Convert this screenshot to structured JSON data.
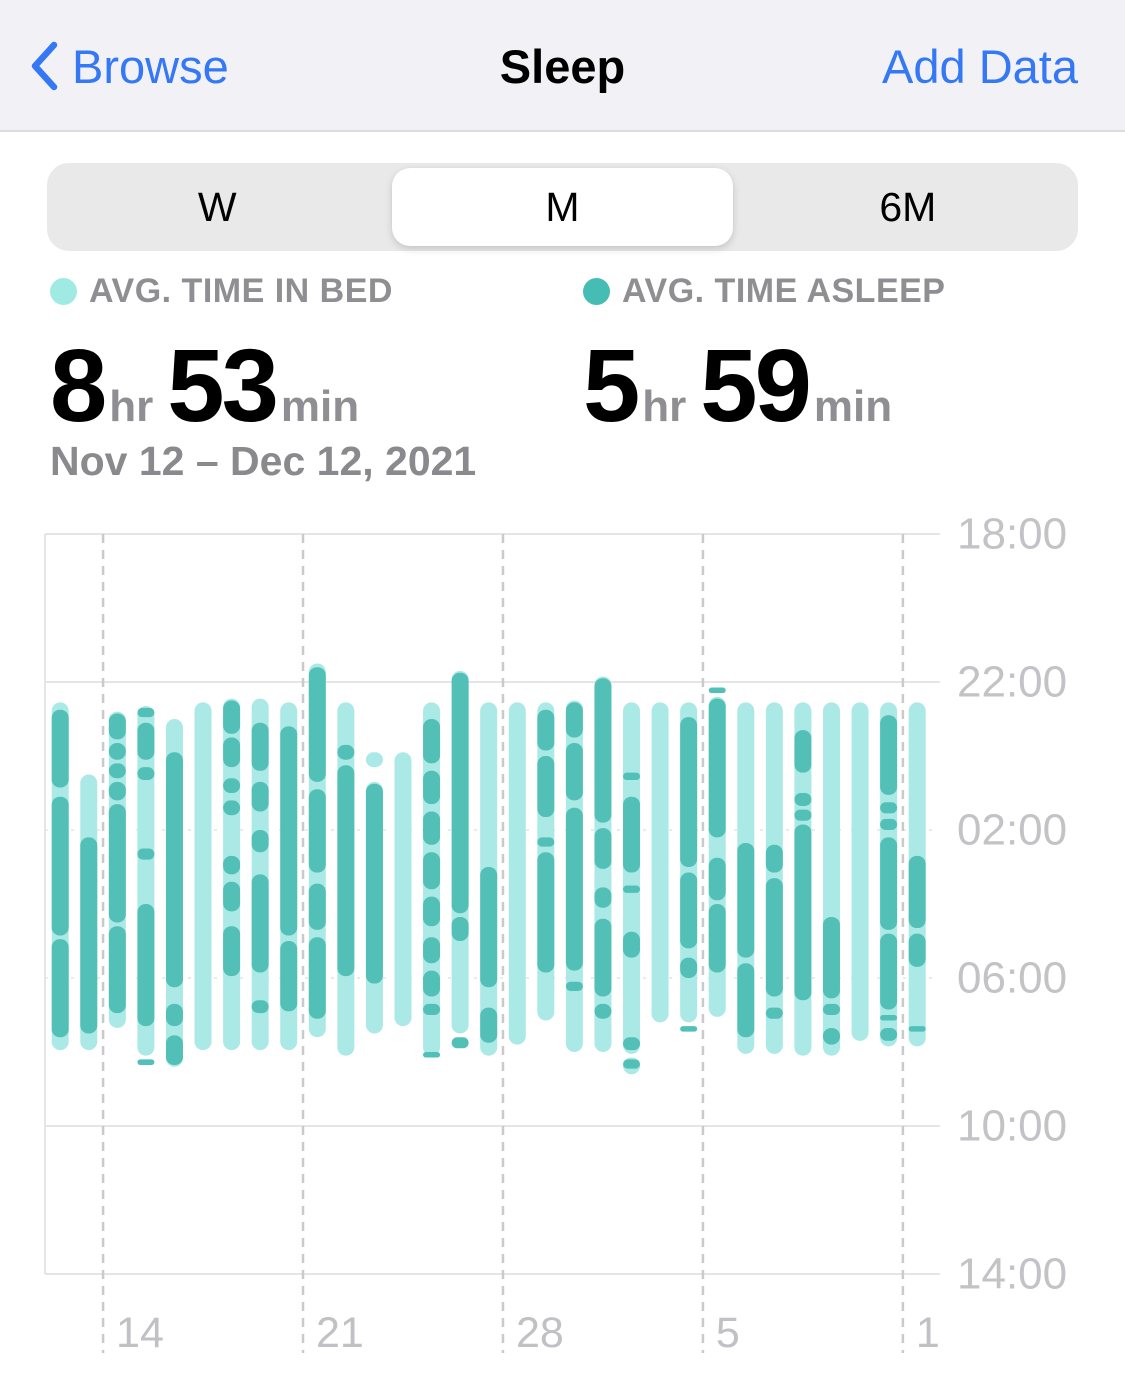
{
  "nav": {
    "back": "Browse",
    "title": "Sleep",
    "action": "Add Data",
    "accent_color": "#3478f6"
  },
  "segmented": {
    "options": [
      "W",
      "M",
      "6M"
    ],
    "selected_index": 1
  },
  "summary": {
    "legend_bed": {
      "label": "AVG. TIME IN BED",
      "color": "#9febe3"
    },
    "legend_asleep": {
      "label": "AVG. TIME ASLEEP",
      "color": "#45bdb4"
    },
    "bed": {
      "hours": "8",
      "hr_unit": "hr",
      "minutes": "53",
      "min_unit": "min"
    },
    "asleep": {
      "hours": "5",
      "hr_unit": "hr",
      "minutes": "59",
      "min_unit": "min"
    },
    "date_range": "Nov 12 – Dec 12, 2021"
  },
  "chart_data": {
    "type": "bar",
    "variant": "time-interval sleep chart (one vertical capsule per night)",
    "title": "Sleep, Nov 12 – Dec 12, 2021",
    "unit_note": "all interval values are decimal hours after 18:00 on the axis (18:00 -> 14:00 next day, 20 h span)",
    "colors": {
      "in_bed": "#aae9e5",
      "asleep": "#53c0b8"
    },
    "y_axis": {
      "tick_labels": [
        "18:00",
        "22:00",
        "02:00",
        "06:00",
        "10:00",
        "14:00"
      ],
      "span_hours": 20,
      "grid": true,
      "labels_position": "right"
    },
    "x_axis": {
      "tick_labels": [
        "14",
        "21",
        "28",
        "5",
        "1"
      ],
      "tick_day_indices": [
        1.5,
        8.5,
        15.5,
        22.5,
        29.5
      ],
      "dashed_gridlines": true
    },
    "days": [
      {
        "date": "Nov 12",
        "in_bed": [
          [
            4.55,
            13.95
          ]
        ],
        "asleep": [
          [
            4.75,
            6.85
          ],
          [
            7.1,
            10.85
          ],
          [
            10.95,
            13.6
          ]
        ]
      },
      {
        "date": "Nov 13",
        "in_bed": [
          [
            6.5,
            13.95
          ]
        ],
        "asleep": [
          [
            8.2,
            13.5
          ]
        ]
      },
      {
        "date": "Nov 14",
        "in_bed": [
          [
            4.8,
            13.35
          ]
        ],
        "asleep": [
          [
            4.85,
            5.55
          ],
          [
            5.65,
            6.1
          ],
          [
            6.2,
            6.6
          ],
          [
            6.7,
            7.2
          ],
          [
            7.3,
            10.5
          ],
          [
            10.6,
            12.95
          ]
        ]
      },
      {
        "date": "Nov 15",
        "in_bed": [
          [
            4.65,
            14.1
          ]
        ],
        "asleep": [
          [
            4.7,
            4.95
          ],
          [
            5.1,
            6.1
          ],
          [
            6.3,
            6.65
          ],
          [
            8.5,
            8.8
          ],
          [
            10.0,
            13.3
          ],
          [
            14.2,
            14.35
          ]
        ]
      },
      {
        "date": "Nov 16",
        "in_bed": [
          [
            5.0,
            14.4
          ]
        ],
        "asleep": [
          [
            5.9,
            12.25
          ],
          [
            12.7,
            13.3
          ],
          [
            13.55,
            14.35
          ]
        ]
      },
      {
        "date": "Nov 17",
        "in_bed": [
          [
            4.55,
            13.95
          ]
        ],
        "asleep": []
      },
      {
        "date": "Nov 18",
        "in_bed": [
          [
            4.45,
            13.95
          ]
        ],
        "asleep": [
          [
            4.5,
            5.4
          ],
          [
            5.5,
            6.3
          ],
          [
            6.6,
            7.0
          ],
          [
            7.2,
            7.6
          ],
          [
            8.7,
            9.2
          ],
          [
            9.4,
            10.2
          ],
          [
            10.6,
            11.95
          ]
        ]
      },
      {
        "date": "Nov 19",
        "in_bed": [
          [
            4.45,
            13.95
          ]
        ],
        "asleep": [
          [
            5.1,
            6.4
          ],
          [
            6.7,
            7.5
          ],
          [
            8.0,
            8.6
          ],
          [
            9.2,
            11.85
          ],
          [
            12.6,
            12.95
          ]
        ]
      },
      {
        "date": "Nov 20",
        "in_bed": [
          [
            4.55,
            13.95
          ]
        ],
        "asleep": [
          [
            5.2,
            10.85
          ],
          [
            11.0,
            12.9
          ]
        ]
      },
      {
        "date": "Nov 21",
        "in_bed": [
          [
            3.5,
            13.6
          ]
        ],
        "asleep": [
          [
            3.6,
            6.7
          ],
          [
            6.9,
            9.15
          ],
          [
            9.45,
            10.7
          ],
          [
            10.9,
            13.1
          ]
        ]
      },
      {
        "date": "Nov 22",
        "in_bed": [
          [
            4.55,
            14.1
          ]
        ],
        "asleep": [
          [
            5.7,
            6.1
          ],
          [
            6.25,
            11.95
          ]
        ]
      },
      {
        "date": "Nov 23",
        "in_bed": [
          [
            5.9,
            6.3
          ],
          [
            6.7,
            13.5
          ]
        ],
        "asleep": [
          [
            6.75,
            12.15
          ]
        ]
      },
      {
        "date": "Nov 24",
        "in_bed": [
          [
            5.9,
            13.3
          ]
        ],
        "asleep": []
      },
      {
        "date": "Nov 25",
        "in_bed": [
          [
            4.55,
            14.1
          ]
        ],
        "asleep": [
          [
            5.0,
            6.2
          ],
          [
            6.4,
            7.3
          ],
          [
            7.5,
            8.4
          ],
          [
            8.6,
            9.6
          ],
          [
            9.8,
            10.6
          ],
          [
            10.9,
            11.6
          ],
          [
            11.8,
            12.5
          ],
          [
            12.7,
            13.0
          ],
          [
            14.0,
            14.15
          ]
        ]
      },
      {
        "date": "Nov 26",
        "in_bed": [
          [
            3.7,
            13.5
          ]
        ],
        "asleep": [
          [
            3.75,
            10.25
          ],
          [
            10.35,
            11.0
          ],
          [
            13.6,
            13.9
          ]
        ]
      },
      {
        "date": "Nov 27",
        "in_bed": [
          [
            4.55,
            14.1
          ]
        ],
        "asleep": [
          [
            9.0,
            12.25
          ],
          [
            12.8,
            13.75
          ]
        ]
      },
      {
        "date": "Nov 28",
        "in_bed": [
          [
            4.55,
            13.8
          ]
        ],
        "asleep": []
      },
      {
        "date": "Nov 29",
        "in_bed": [
          [
            4.55,
            13.15
          ]
        ],
        "asleep": [
          [
            4.75,
            5.85
          ],
          [
            6.0,
            7.65
          ],
          [
            8.2,
            8.45
          ],
          [
            8.6,
            11.85
          ]
        ]
      },
      {
        "date": "Nov 30",
        "in_bed": [
          [
            4.5,
            14.0
          ]
        ],
        "asleep": [
          [
            4.55,
            5.5
          ],
          [
            5.65,
            7.2
          ],
          [
            7.4,
            11.8
          ],
          [
            12.1,
            12.35
          ]
        ]
      },
      {
        "date": "Dec 1",
        "in_bed": [
          [
            3.85,
            14.0
          ]
        ],
        "asleep": [
          [
            3.9,
            7.8
          ],
          [
            7.95,
            9.05
          ],
          [
            9.55,
            10.1
          ],
          [
            10.4,
            12.5
          ],
          [
            12.7,
            13.1
          ]
        ]
      },
      {
        "date": "Dec 2",
        "in_bed": [
          [
            4.55,
            14.05
          ],
          [
            14.15,
            14.6
          ]
        ],
        "asleep": [
          [
            6.45,
            6.65
          ],
          [
            7.1,
            9.15
          ],
          [
            9.5,
            9.7
          ],
          [
            10.75,
            11.45
          ],
          [
            13.6,
            13.95
          ],
          [
            14.2,
            14.45
          ]
        ]
      },
      {
        "date": "Dec 3",
        "in_bed": [
          [
            4.55,
            13.2
          ]
        ],
        "asleep": []
      },
      {
        "date": "Dec 4",
        "in_bed": [
          [
            4.55,
            13.2
          ]
        ],
        "asleep": [
          [
            4.95,
            9.0
          ],
          [
            9.15,
            11.2
          ],
          [
            11.45,
            12.0
          ],
          [
            13.3,
            13.45
          ]
        ]
      },
      {
        "date": "Dec 5",
        "in_bed": [
          [
            4.4,
            13.05
          ]
        ],
        "asleep": [
          [
            4.15,
            4.3
          ],
          [
            4.45,
            8.2
          ],
          [
            8.75,
            9.9
          ],
          [
            10.0,
            11.85
          ]
        ]
      },
      {
        "date": "Dec 6",
        "in_bed": [
          [
            4.55,
            14.05
          ]
        ],
        "asleep": [
          [
            8.35,
            11.45
          ],
          [
            11.6,
            13.6
          ]
        ]
      },
      {
        "date": "Dec 7",
        "in_bed": [
          [
            4.55,
            14.05
          ]
        ],
        "asleep": [
          [
            8.4,
            9.15
          ],
          [
            9.3,
            12.5
          ],
          [
            12.8,
            13.1
          ]
        ]
      },
      {
        "date": "Dec 8",
        "in_bed": [
          [
            4.55,
            14.1
          ]
        ],
        "asleep": [
          [
            5.3,
            6.45
          ],
          [
            7.0,
            7.35
          ],
          [
            7.45,
            7.75
          ],
          [
            7.85,
            12.6
          ]
        ]
      },
      {
        "date": "Dec 9",
        "in_bed": [
          [
            4.55,
            14.1
          ]
        ],
        "asleep": [
          [
            10.35,
            12.55
          ],
          [
            12.7,
            13.0
          ],
          [
            13.35,
            13.8
          ]
        ]
      },
      {
        "date": "Dec 10",
        "in_bed": [
          [
            4.55,
            13.7
          ]
        ],
        "asleep": []
      },
      {
        "date": "Dec 11",
        "in_bed": [
          [
            4.55,
            13.85
          ]
        ],
        "asleep": [
          [
            4.9,
            7.05
          ],
          [
            7.25,
            7.55
          ],
          [
            7.7,
            8.0
          ],
          [
            8.2,
            10.7
          ],
          [
            10.8,
            12.85
          ],
          [
            13.0,
            13.15
          ],
          [
            13.35,
            13.7
          ]
        ]
      },
      {
        "date": "Dec 12",
        "in_bed": [
          [
            4.55,
            13.85
          ]
        ],
        "asleep": [
          [
            8.7,
            10.65
          ],
          [
            10.8,
            11.7
          ],
          [
            13.3,
            13.45
          ]
        ]
      }
    ]
  }
}
